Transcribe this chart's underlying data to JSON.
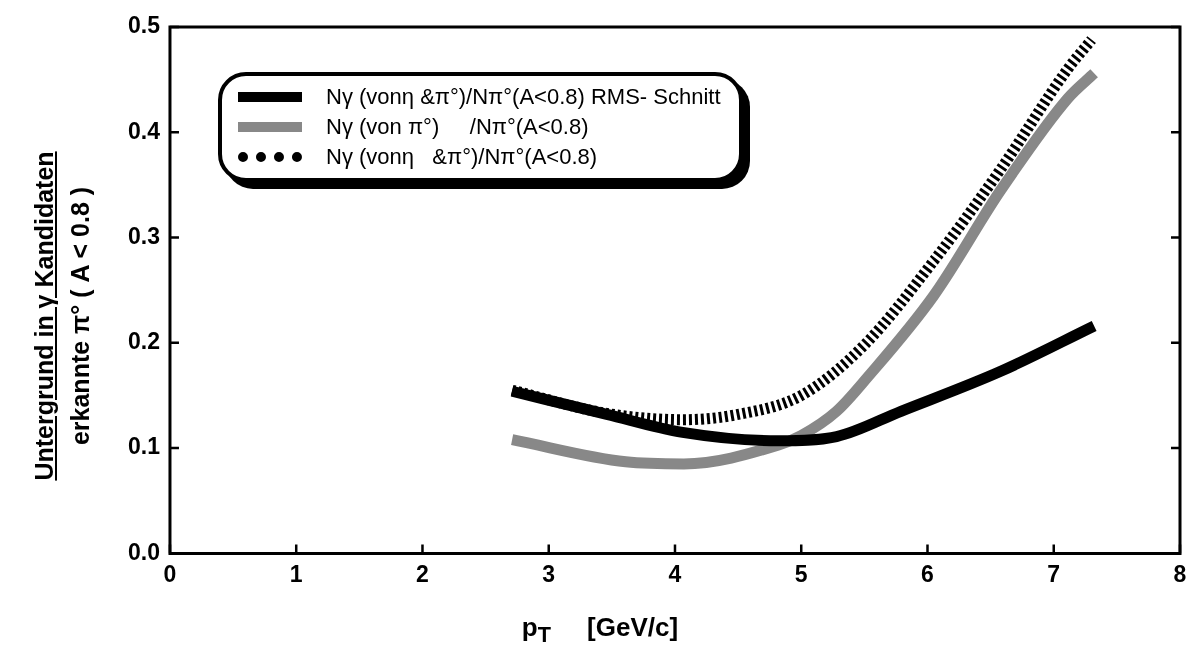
{
  "chart_data": {
    "type": "line",
    "xlabel": "p$_{T}$     [GeV/c]",
    "ylabel": "Untergrund in  γ Kandidaten\nerkannte π° ( A < 0.8 )",
    "xlim": [
      0,
      8
    ],
    "xticks": [
      0,
      1,
      2,
      3,
      4,
      5,
      6,
      7,
      8
    ],
    "ylim": [
      0,
      0.5
    ],
    "yticks": [
      {
        "value": 0,
        "label": "0.0"
      },
      0.1,
      0.2,
      0.3,
      0.4,
      0.5
    ],
    "grid": false,
    "legend": "top left",
    "marker": "none",
    "series": [
      {
        "name": "Nγ (vonη &π°)/Nπ°(A<0.8) RMS- Schnitt",
        "color": "#000000",
        "line_style": "solid",
        "x": [
          2.71,
          3.46,
          4.06,
          4.82,
          5.28,
          5.79,
          6.58,
          7.32
        ],
        "values": [
          0.154,
          0.132,
          0.115,
          0.107,
          0.111,
          0.135,
          0.173,
          0.216
        ]
      },
      {
        "name": "Nγ (von π°)     /Nπ°(A<0.8)",
        "color": "#888888",
        "line_style": "solid",
        "x": [
          2.71,
          3.61,
          4.07,
          4.82,
          5.0,
          5.28,
          5.53,
          6.05,
          6.58,
          7.11,
          7.32
        ],
        "values": [
          0.108,
          0.087,
          0.085,
          0.103,
          0.112,
          0.135,
          0.168,
          0.245,
          0.345,
          0.432,
          0.456
        ]
      },
      {
        "name": "Nγ (vonη   &π°)/Nπ°(A<0.8)",
        "color": "#000000",
        "line_style": "dotted",
        "x": [
          2.71,
          3.46,
          4.06,
          4.5,
          5.0,
          5.5,
          6.05,
          6.58,
          7.11,
          7.3
        ],
        "values": [
          0.155,
          0.133,
          0.127,
          0.132,
          0.15,
          0.198,
          0.278,
          0.365,
          0.46,
          0.488
        ]
      }
    ]
  }
}
